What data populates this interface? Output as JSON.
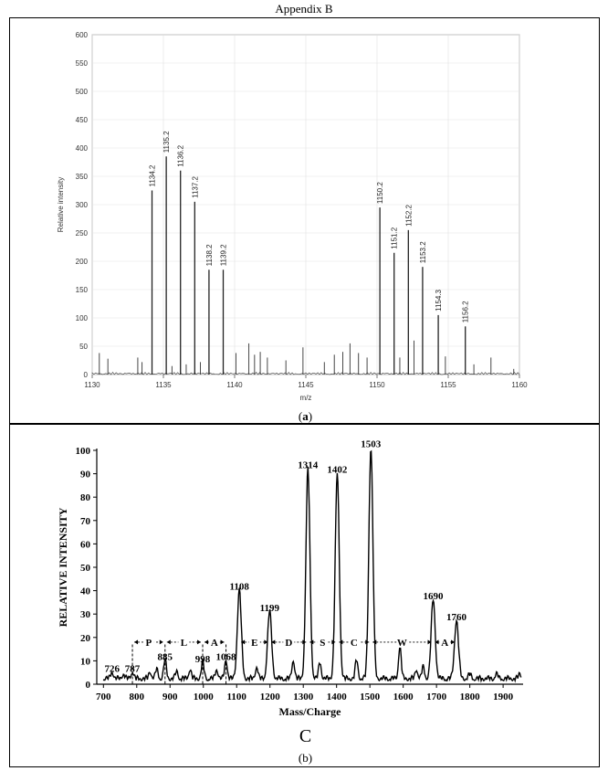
{
  "page": {
    "title": "Appendix B"
  },
  "chart_data": [
    {
      "type": "line",
      "panel_caption_prefix": "(",
      "panel_caption_letter": "a",
      "panel_caption_suffix": ")",
      "xlabel": "m/z",
      "ylabel": "Relative intensity",
      "xlim": [
        1130,
        1160
      ],
      "ylim": [
        0,
        600
      ],
      "xticks": [
        1130,
        1135,
        1140,
        1145,
        1150,
        1155,
        1160
      ],
      "yticks": [
        0,
        50,
        100,
        150,
        200,
        250,
        300,
        350,
        400,
        450,
        500,
        550,
        600
      ],
      "grid": true,
      "peaks": [
        {
          "x": 1134.2,
          "y": 325,
          "label": "1134.2"
        },
        {
          "x": 1135.2,
          "y": 385,
          "label": "1135.2"
        },
        {
          "x": 1136.2,
          "y": 360,
          "label": "1136.2"
        },
        {
          "x": 1137.2,
          "y": 305,
          "label": "1137.2"
        },
        {
          "x": 1138.2,
          "y": 185,
          "label": "1138.2"
        },
        {
          "x": 1139.2,
          "y": 185,
          "label": "1139.2"
        },
        {
          "x": 1150.2,
          "y": 295,
          "label": "1150.2"
        },
        {
          "x": 1151.2,
          "y": 215,
          "label": "1151.2"
        },
        {
          "x": 1152.2,
          "y": 255,
          "label": "1152.2"
        },
        {
          "x": 1153.2,
          "y": 190,
          "label": "1153.2"
        },
        {
          "x": 1154.3,
          "y": 105,
          "label": "1154.3"
        },
        {
          "x": 1156.2,
          "y": 85,
          "label": "1156.2"
        }
      ],
      "minor_peaks": [
        {
          "x": 1130.5,
          "y": 38
        },
        {
          "x": 1131.1,
          "y": 28
        },
        {
          "x": 1133.2,
          "y": 30
        },
        {
          "x": 1133.5,
          "y": 22
        },
        {
          "x": 1135.6,
          "y": 15
        },
        {
          "x": 1136.6,
          "y": 18
        },
        {
          "x": 1137.6,
          "y": 22
        },
        {
          "x": 1140.1,
          "y": 38
        },
        {
          "x": 1141.0,
          "y": 55
        },
        {
          "x": 1141.4,
          "y": 35
        },
        {
          "x": 1141.8,
          "y": 40
        },
        {
          "x": 1142.3,
          "y": 30
        },
        {
          "x": 1143.6,
          "y": 25
        },
        {
          "x": 1144.8,
          "y": 48
        },
        {
          "x": 1146.3,
          "y": 22
        },
        {
          "x": 1147.0,
          "y": 35
        },
        {
          "x": 1147.6,
          "y": 40
        },
        {
          "x": 1148.1,
          "y": 55
        },
        {
          "x": 1148.7,
          "y": 38
        },
        {
          "x": 1149.3,
          "y": 30
        },
        {
          "x": 1151.6,
          "y": 30
        },
        {
          "x": 1152.6,
          "y": 60
        },
        {
          "x": 1154.8,
          "y": 32
        },
        {
          "x": 1156.8,
          "y": 18
        },
        {
          "x": 1158.0,
          "y": 30
        },
        {
          "x": 1159.6,
          "y": 10
        }
      ]
    },
    {
      "type": "line",
      "panel_caption": "(b)",
      "letter_caption": "C",
      "xlabel": "Mass/Charge",
      "ylabel": "RELATIVE INTENSITY",
      "xlim": [
        680,
        1960
      ],
      "ylim": [
        0,
        100
      ],
      "xticks": [
        700,
        800,
        900,
        1000,
        1100,
        1200,
        1300,
        1400,
        1500,
        1600,
        1700,
        1800,
        1900
      ],
      "yticks": [
        0,
        10,
        20,
        30,
        40,
        50,
        60,
        70,
        80,
        90,
        100
      ],
      "peaks": [
        {
          "x": 726,
          "y": 3,
          "label": "726"
        },
        {
          "x": 787,
          "y": 3,
          "label": "787"
        },
        {
          "x": 885,
          "y": 8,
          "label": "885"
        },
        {
          "x": 998,
          "y": 7,
          "label": "998"
        },
        {
          "x": 1068,
          "y": 8,
          "label": "1068"
        },
        {
          "x": 1108,
          "y": 38,
          "label": "1108"
        },
        {
          "x": 1199,
          "y": 29,
          "label": "1199"
        },
        {
          "x": 1314,
          "y": 90,
          "label": "1314"
        },
        {
          "x": 1402,
          "y": 88,
          "label": "1402"
        },
        {
          "x": 1503,
          "y": 99,
          "label": "1503"
        },
        {
          "x": 1690,
          "y": 34,
          "label": "1690"
        },
        {
          "x": 1760,
          "y": 25,
          "label": "1760"
        }
      ],
      "minor_peaks": [
        {
          "x": 760,
          "y": 2
        },
        {
          "x": 840,
          "y": 3
        },
        {
          "x": 860,
          "y": 4
        },
        {
          "x": 920,
          "y": 3
        },
        {
          "x": 960,
          "y": 4
        },
        {
          "x": 1040,
          "y": 4
        },
        {
          "x": 1160,
          "y": 5
        },
        {
          "x": 1270,
          "y": 8
        },
        {
          "x": 1350,
          "y": 7
        },
        {
          "x": 1460,
          "y": 8
        },
        {
          "x": 1590,
          "y": 14
        },
        {
          "x": 1640,
          "y": 4
        },
        {
          "x": 1660,
          "y": 5
        },
        {
          "x": 1800,
          "y": 2
        },
        {
          "x": 1880,
          "y": 2
        },
        {
          "x": 1950,
          "y": 2
        }
      ],
      "segments": [
        {
          "from": 787,
          "to": 885,
          "label": "P"
        },
        {
          "from": 885,
          "to": 998,
          "label": "L"
        },
        {
          "from": 998,
          "to": 1068,
          "label": "A"
        },
        {
          "from": 1108,
          "to": 1199,
          "label": "E"
        },
        {
          "from": 1199,
          "to": 1314,
          "label": "D"
        },
        {
          "from": 1314,
          "to": 1402,
          "label": "S"
        },
        {
          "from": 1402,
          "to": 1503,
          "label": "C"
        },
        {
          "from": 1503,
          "to": 1690,
          "label": "W"
        },
        {
          "from": 1690,
          "to": 1760,
          "label": "A"
        }
      ]
    }
  ]
}
